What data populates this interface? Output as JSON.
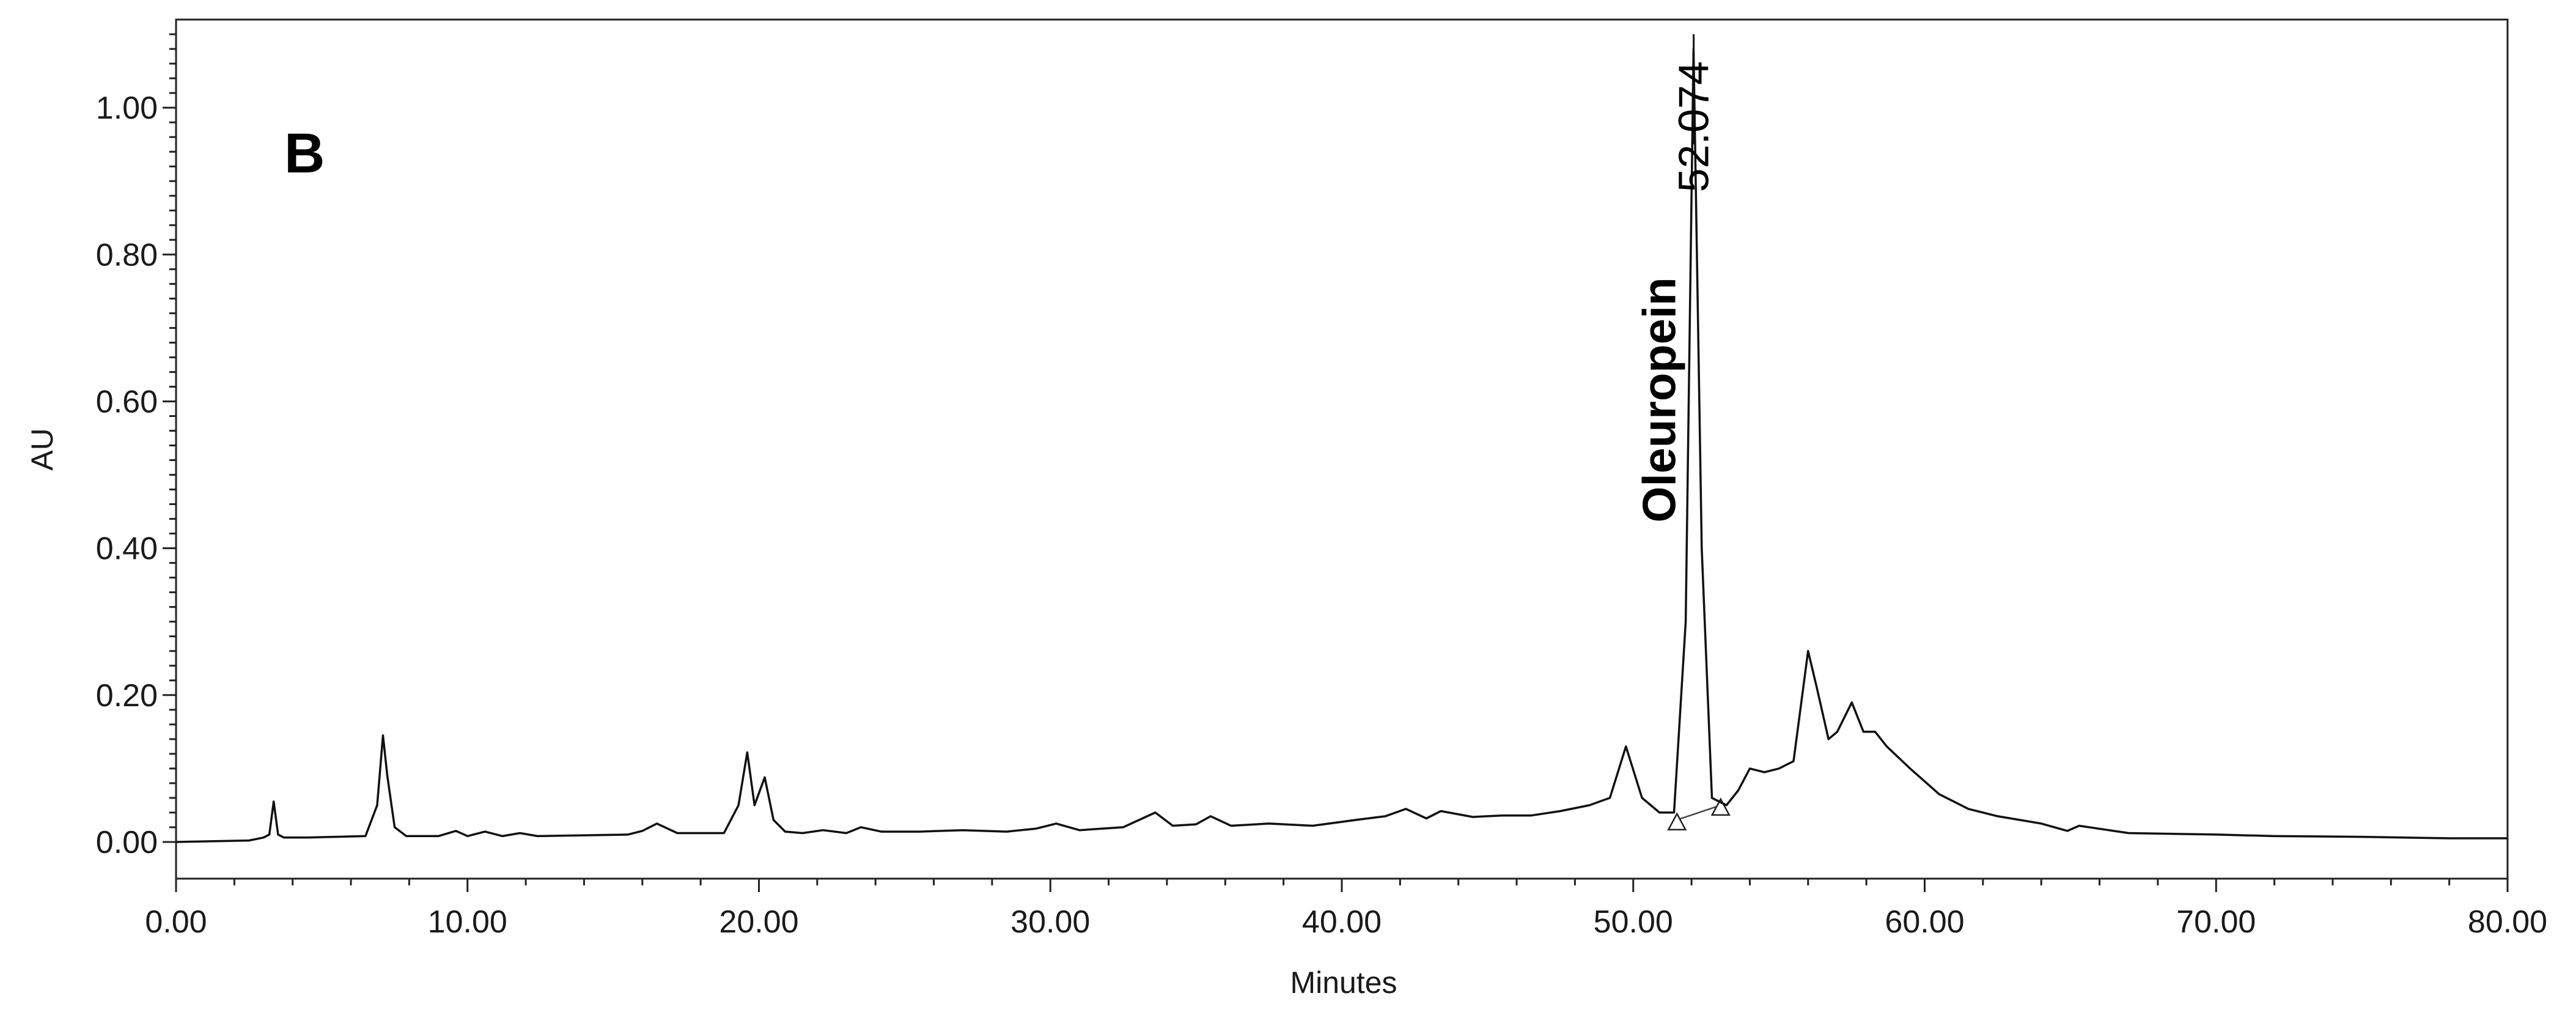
{
  "chart_data": {
    "type": "line",
    "panel_label": "B",
    "xlabel": "Minutes",
    "ylabel": "AU",
    "xlim": [
      0,
      80
    ],
    "ylim": [
      -0.05,
      1.12
    ],
    "x_ticks": [
      "0.00",
      "10.00",
      "20.00",
      "30.00",
      "40.00",
      "50.00",
      "60.00",
      "70.00",
      "80.00"
    ],
    "y_ticks": [
      "0.00",
      "0.20",
      "0.40",
      "0.60",
      "0.80",
      "1.00"
    ],
    "grid": false,
    "line_color": "#111111",
    "series": [
      {
        "x": [
          0,
          2.5,
          3.0,
          3.2,
          3.35,
          3.5,
          3.7,
          4.5,
          6.5,
          6.9,
          7.1,
          7.25,
          7.5,
          7.9,
          9.0,
          9.6,
          10.0,
          10.6,
          11.2,
          11.8,
          12.4,
          15.5,
          16.0,
          16.5,
          17.2,
          18.8,
          19.3,
          19.6,
          19.85,
          20.2,
          20.5,
          20.9,
          21.5,
          22.2,
          23.0,
          23.5,
          24.2,
          25.5,
          27.0,
          28.5,
          29.5,
          30.2,
          31.0,
          32.5,
          33.6,
          34.2,
          35.0,
          35.5,
          36.2,
          37.5,
          39.0,
          40.5,
          41.5,
          42.2,
          42.9,
          43.4,
          44.5,
          45.5,
          46.5,
          47.5,
          48.5,
          49.2,
          49.75,
          50.3,
          50.9,
          51.4,
          51.8,
          52.07,
          52.35,
          52.7,
          53.2,
          53.6,
          54.0,
          54.5,
          55.0,
          55.5,
          56.0,
          56.3,
          56.7,
          57.0,
          57.5,
          57.9,
          58.3,
          58.7,
          59.5,
          60.5,
          61.5,
          62.5,
          64.0,
          64.9,
          65.3,
          67.0,
          70.0,
          72.0,
          75.0,
          78.0,
          80.0
        ],
        "y": [
          0.0,
          0.002,
          0.006,
          0.01,
          0.055,
          0.01,
          0.006,
          0.006,
          0.008,
          0.05,
          0.145,
          0.09,
          0.02,
          0.008,
          0.008,
          0.015,
          0.008,
          0.014,
          0.008,
          0.012,
          0.008,
          0.01,
          0.015,
          0.025,
          0.012,
          0.012,
          0.05,
          0.122,
          0.05,
          0.088,
          0.03,
          0.014,
          0.012,
          0.016,
          0.012,
          0.02,
          0.014,
          0.014,
          0.016,
          0.014,
          0.018,
          0.025,
          0.016,
          0.02,
          0.04,
          0.022,
          0.024,
          0.035,
          0.022,
          0.025,
          0.022,
          0.03,
          0.035,
          0.045,
          0.032,
          0.042,
          0.034,
          0.036,
          0.036,
          0.042,
          0.05,
          0.06,
          0.13,
          0.06,
          0.04,
          0.04,
          0.3,
          1.08,
          0.4,
          0.06,
          0.05,
          0.07,
          0.1,
          0.095,
          0.1,
          0.11,
          0.26,
          0.21,
          0.14,
          0.15,
          0.19,
          0.15,
          0.15,
          0.13,
          0.1,
          0.065,
          0.045,
          0.035,
          0.025,
          0.015,
          0.022,
          0.012,
          0.01,
          0.008,
          0.007,
          0.005,
          0.005
        ]
      }
    ],
    "annotations": [
      {
        "name": "Oleuropein",
        "retention_time": "52.074",
        "x": 52.074
      }
    ],
    "integration_baseline": {
      "start": {
        "x": 51.5,
        "y": 0.03
      },
      "end": {
        "x": 53.0,
        "y": 0.05
      }
    }
  }
}
